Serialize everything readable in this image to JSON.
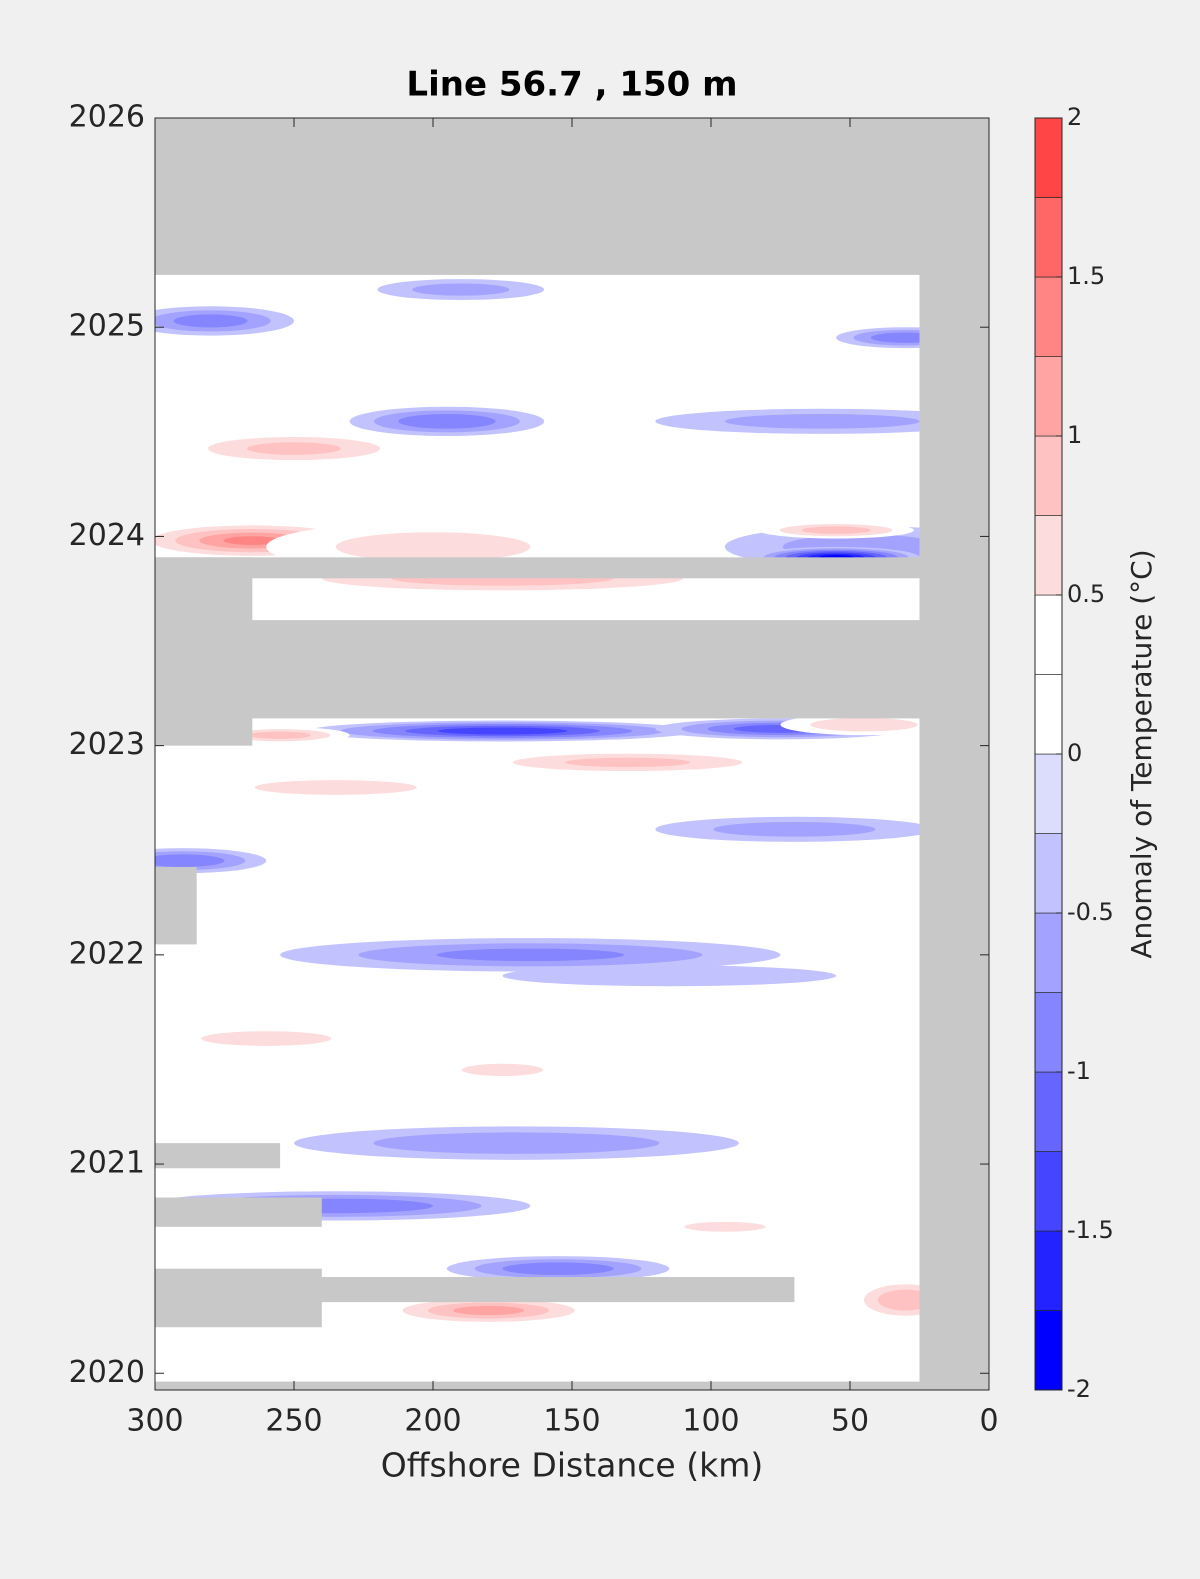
{
  "chart_data": {
    "type": "contour",
    "title": "Line 56.7 , 150 m",
    "x_label": "Offshore Distance (km)",
    "colorbar_label": "Anomaly of Temperature (°C)",
    "xlim": [
      300,
      0
    ],
    "xticks": [
      300,
      250,
      200,
      150,
      100,
      50,
      0
    ],
    "ylim": [
      2019.92,
      2026
    ],
    "yticks": [
      2020,
      2021,
      2022,
      2023,
      2024,
      2025,
      2026
    ],
    "levels": [
      -2,
      -1.75,
      -1.5,
      -1.25,
      -1,
      -0.75,
      -0.5,
      -0.25,
      0,
      0.25,
      0.5,
      0.75,
      1,
      1.25,
      1.5,
      1.75,
      2
    ],
    "colors": [
      "#0000ff",
      "#2323ff",
      "#4545ff",
      "#6666ff",
      "#8585ff",
      "#a3a3ff",
      "#c2c2ff",
      "#dcdcfc",
      "#ffffff",
      "#ffffff",
      "#fcdcdc",
      "#ffc2c2",
      "#ffa3a3",
      "#ff8585",
      "#ff6666",
      "#ff4545",
      "#ff0000"
    ],
    "colorbar_ticks": [
      -2,
      -1.5,
      -1,
      -0.5,
      0,
      0.5,
      1,
      1.5,
      2
    ],
    "mask_color": "#c8c8c8",
    "blobs": [
      {
        "x": 235,
        "y": 2023.9,
        "rx": 55,
        "ry": 0.08,
        "value": 1.85
      },
      {
        "x": 265,
        "y": 2023.98,
        "rx": 45,
        "ry": 0.09,
        "value": 1.3
      },
      {
        "x": 200,
        "y": 2023.95,
        "rx": 60,
        "ry": 0.12,
        "value": 0.6
      },
      {
        "x": 45,
        "y": 2023.95,
        "rx": 50,
        "ry": 0.1,
        "value": -0.6
      },
      {
        "x": 55,
        "y": 2023.9,
        "rx": 30,
        "ry": 0.05,
        "value": -1.9
      },
      {
        "x": 55,
        "y": 2024.03,
        "rx": 28,
        "ry": 0.04,
        "value": 0.9
      },
      {
        "x": 175,
        "y": 2023.8,
        "rx": 90,
        "ry": 0.08,
        "value": 0.9
      },
      {
        "x": 110,
        "y": 2024.3,
        "rx": 80,
        "ry": 0.07,
        "value": 0.4
      },
      {
        "x": 250,
        "y": 2024.42,
        "rx": 45,
        "ry": 0.08,
        "value": 0.8
      },
      {
        "x": 195,
        "y": 2024.55,
        "rx": 35,
        "ry": 0.07,
        "value": -1.0
      },
      {
        "x": 60,
        "y": 2024.55,
        "rx": 60,
        "ry": 0.06,
        "value": -0.6
      },
      {
        "x": 280,
        "y": 2025.03,
        "rx": 30,
        "ry": 0.07,
        "value": -0.9
      },
      {
        "x": 190,
        "y": 2025.18,
        "rx": 30,
        "ry": 0.05,
        "value": -0.6
      },
      {
        "x": 30,
        "y": 2024.95,
        "rx": 25,
        "ry": 0.05,
        "value": -1.0
      },
      {
        "x": 200,
        "y": 2025.0,
        "rx": 50,
        "ry": 0.05,
        "value": 0.5
      },
      {
        "x": 175,
        "y": 2023.07,
        "rx": 70,
        "ry": 0.05,
        "value": -1.5
      },
      {
        "x": 75,
        "y": 2023.08,
        "rx": 45,
        "ry": 0.05,
        "value": -1.2
      },
      {
        "x": 255,
        "y": 2023.05,
        "rx": 25,
        "ry": 0.04,
        "value": 0.9
      },
      {
        "x": 130,
        "y": 2022.92,
        "rx": 60,
        "ry": 0.06,
        "value": 0.8
      },
      {
        "x": 235,
        "y": 2022.8,
        "rx": 50,
        "ry": 0.06,
        "value": 0.6
      },
      {
        "x": 290,
        "y": 2022.45,
        "rx": 30,
        "ry": 0.06,
        "value": -1.0
      },
      {
        "x": 165,
        "y": 2022.0,
        "rx": 90,
        "ry": 0.08,
        "value": -0.8
      },
      {
        "x": 115,
        "y": 2021.9,
        "rx": 60,
        "ry": 0.05,
        "value": -0.5
      },
      {
        "x": 260,
        "y": 2021.6,
        "rx": 40,
        "ry": 0.06,
        "value": 0.6
      },
      {
        "x": 175,
        "y": 2021.45,
        "rx": 25,
        "ry": 0.05,
        "value": 0.6
      },
      {
        "x": 170,
        "y": 2021.1,
        "rx": 80,
        "ry": 0.08,
        "value": -0.7
      },
      {
        "x": 235,
        "y": 2020.8,
        "rx": 70,
        "ry": 0.07,
        "value": -1.0
      },
      {
        "x": 155,
        "y": 2020.5,
        "rx": 40,
        "ry": 0.06,
        "value": -1.0
      },
      {
        "x": 180,
        "y": 2020.3,
        "rx": 40,
        "ry": 0.07,
        "value": 1.1
      },
      {
        "x": 30,
        "y": 2020.35,
        "rx": 20,
        "ry": 0.1,
        "value": 1.0
      },
      {
        "x": 95,
        "y": 2020.7,
        "rx": 25,
        "ry": 0.04,
        "value": 0.6
      },
      {
        "x": 70,
        "y": 2022.6,
        "rx": 50,
        "ry": 0.06,
        "value": -0.6
      },
      {
        "x": 45,
        "y": 2023.1,
        "rx": 30,
        "ry": 0.05,
        "value": 0.7
      }
    ],
    "no_data": [
      {
        "x": [
          300,
          0
        ],
        "y": [
          2025.25,
          2026
        ]
      },
      {
        "x": [
          25,
          0
        ],
        "y": [
          2019.92,
          2026
        ]
      },
      {
        "x": [
          300,
          25
        ],
        "y": [
          2023.13,
          2023.6
        ]
      },
      {
        "x": [
          300,
          25
        ],
        "y": [
          2023.8,
          2023.9
        ]
      },
      {
        "x": [
          300,
          265
        ],
        "y": [
          2023.0,
          2023.9
        ]
      },
      {
        "x": [
          300,
          285
        ],
        "y": [
          2022.05,
          2022.42
        ]
      },
      {
        "x": [
          300,
          255
        ],
        "y": [
          2020.98,
          2021.1
        ]
      },
      {
        "x": [
          300,
          240
        ],
        "y": [
          2020.7,
          2020.84
        ]
      },
      {
        "x": [
          300,
          240
        ],
        "y": [
          2020.22,
          2020.5
        ]
      },
      {
        "x": [
          300,
          70
        ],
        "y": [
          2020.34,
          2020.46
        ]
      },
      {
        "x": [
          300,
          25
        ],
        "y": [
          2019.92,
          2019.96
        ]
      }
    ]
  }
}
